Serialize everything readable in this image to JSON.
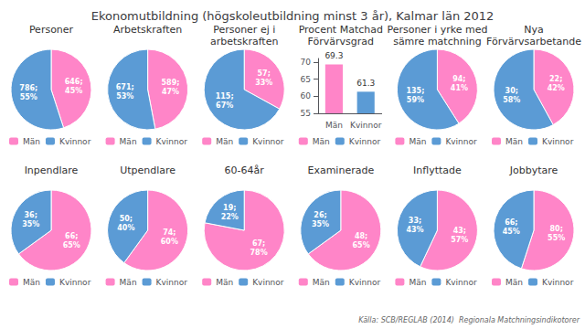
{
  "title": "Ekonomutbildning (högskoleutbildning minst 3 år), Kalmar län 2012",
  "annotations": [
    "Källa: SCB/REGLAB (2014)  Regionala Matchningsindikotorer"
  ],
  "chart_data": [
    {
      "type": "pie",
      "title": "Personer",
      "categories": [
        "Män",
        "Kvinnor"
      ],
      "values": [
        45,
        55
      ],
      "value_labels": [
        "646;\n45%",
        "786;\n55%"
      ],
      "colors": [
        "#FF85C8",
        "#5B9BD5"
      ],
      "data_labels": true,
      "legend": "bottom"
    },
    {
      "type": "pie",
      "title": "Arbetskraften",
      "categories": [
        "Män",
        "Kvinnor"
      ],
      "values": [
        47,
        53
      ],
      "value_labels": [
        "589;\n47%",
        "671;\n53%"
      ],
      "colors": [
        "#FF85C8",
        "#5B9BD5"
      ],
      "data_labels": true,
      "legend": "bottom"
    },
    {
      "type": "pie",
      "title": "Personer ej i\narbetskraften",
      "categories": [
        "Män",
        "Kvinnor"
      ],
      "values": [
        33,
        67
      ],
      "value_labels": [
        "57;\n33%",
        "115;\n67%"
      ],
      "colors": [
        "#FF85C8",
        "#5B9BD5"
      ],
      "data_labels": true,
      "legend": "bottom"
    },
    {
      "type": "bar",
      "title": "Procent Matchad\nFörvärvsgrad",
      "categories": [
        "Män",
        "Kvinnor"
      ],
      "values": [
        69.3,
        61.3
      ],
      "colors": [
        "#FF85C8",
        "#5B9BD5"
      ],
      "ylim": [
        55,
        71
      ],
      "yticks": [
        55,
        60,
        65,
        70
      ],
      "data_labels": true,
      "legend": "bottom"
    },
    {
      "type": "pie",
      "title": "Personer i yrke med\nsämre matchning",
      "categories": [
        "Män",
        "Kvinnor"
      ],
      "values": [
        41,
        59
      ],
      "value_labels": [
        "94;\n41%",
        "135;\n59%"
      ],
      "colors": [
        "#FF85C8",
        "#5B9BD5"
      ],
      "data_labels": true,
      "legend": "bottom"
    },
    {
      "type": "pie",
      "title": "Nya\nFörvärvsarbetande",
      "categories": [
        "Män",
        "Kvinnor"
      ],
      "values": [
        42,
        58
      ],
      "value_labels": [
        "22;\n42%",
        "30;\n58%"
      ],
      "colors": [
        "#FF85C8",
        "#5B9BD5"
      ],
      "data_labels": true,
      "legend": "bottom"
    },
    {
      "type": "pie",
      "title": "Inpendlare",
      "categories": [
        "Män",
        "Kvinnor"
      ],
      "values": [
        65,
        35
      ],
      "value_labels": [
        "66;\n65%",
        "36;\n35%"
      ],
      "colors": [
        "#FF85C8",
        "#5B9BD5"
      ],
      "data_labels": true,
      "legend": "bottom"
    },
    {
      "type": "pie",
      "title": "Utpendlare",
      "categories": [
        "Män",
        "Kvinnor"
      ],
      "values": [
        60,
        40
      ],
      "value_labels": [
        "74;\n60%",
        "50;\n40%"
      ],
      "colors": [
        "#FF85C8",
        "#5B9BD5"
      ],
      "data_labels": true,
      "legend": "bottom"
    },
    {
      "type": "pie",
      "title": "60-64år",
      "categories": [
        "Män",
        "Kvinnor"
      ],
      "values": [
        78,
        22
      ],
      "value_labels": [
        "67;\n78%",
        "19;\n22%"
      ],
      "colors": [
        "#FF85C8",
        "#5B9BD5"
      ],
      "data_labels": true,
      "legend": "bottom"
    },
    {
      "type": "pie",
      "title": "Examinerade",
      "categories": [
        "Män",
        "Kvinnor"
      ],
      "values": [
        65,
        35
      ],
      "value_labels": [
        "48;\n65%",
        "26;\n35%"
      ],
      "colors": [
        "#FF85C8",
        "#5B9BD5"
      ],
      "data_labels": true,
      "legend": "bottom"
    },
    {
      "type": "pie",
      "title": "Inflyttade",
      "categories": [
        "Män",
        "Kvinnor"
      ],
      "values": [
        57,
        43
      ],
      "value_labels": [
        "43;\n57%",
        "33;\n43%"
      ],
      "colors": [
        "#FF85C8",
        "#5B9BD5"
      ],
      "data_labels": true,
      "legend": "bottom"
    },
    {
      "type": "pie",
      "title": "Jobbytare",
      "categories": [
        "Män",
        "Kvinnor"
      ],
      "values": [
        55,
        45
      ],
      "value_labels": [
        "80;\n55%",
        "66;\n45%"
      ],
      "colors": [
        "#FF85C8",
        "#5B9BD5"
      ],
      "data_labels": true,
      "legend": "bottom"
    }
  ]
}
